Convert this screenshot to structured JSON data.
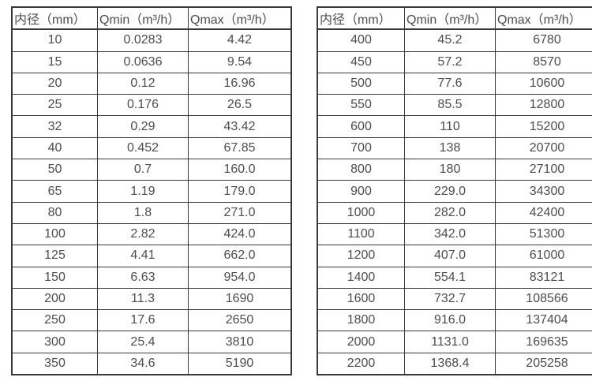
{
  "colors": {
    "border": "#3a3a3a",
    "text": "#4d4d4d",
    "background": "#ffffff"
  },
  "tables": [
    {
      "name": "small-diameters",
      "headers": [
        "内径（mm）",
        "Qmin（m³/h）",
        "Qmax（m³/h）"
      ],
      "rows": [
        [
          "10",
          "0.0283",
          "4.42"
        ],
        [
          "15",
          "0.0636",
          "9.54"
        ],
        [
          "20",
          "0.12",
          "16.96"
        ],
        [
          "25",
          "0.176",
          "26.5"
        ],
        [
          "32",
          "0.29",
          "43.42"
        ],
        [
          "40",
          "0.452",
          "67.85"
        ],
        [
          "50",
          "0.7",
          "160.0"
        ],
        [
          "65",
          "1.19",
          "179.0"
        ],
        [
          "80",
          "1.8",
          "271.0"
        ],
        [
          "100",
          "2.82",
          "424.0"
        ],
        [
          "125",
          "4.41",
          "662.0"
        ],
        [
          "150",
          "6.63",
          "954.0"
        ],
        [
          "200",
          "11.3",
          "1690"
        ],
        [
          "250",
          "17.6",
          "2650"
        ],
        [
          "300",
          "25.4",
          "3810"
        ],
        [
          "350",
          "34.6",
          "5190"
        ]
      ]
    },
    {
      "name": "large-diameters",
      "headers": [
        "内径（mm）",
        "Qmin（m³/h）",
        "Qmax（m³/h）"
      ],
      "rows": [
        [
          "400",
          "45.2",
          "6780"
        ],
        [
          "450",
          "57.2",
          "8570"
        ],
        [
          "500",
          "77.6",
          "10600"
        ],
        [
          "550",
          "85.5",
          "12800"
        ],
        [
          "600",
          "110",
          "15200"
        ],
        [
          "700",
          "138",
          "20700"
        ],
        [
          "800",
          "180",
          "27100"
        ],
        [
          "900",
          "229.0",
          "34300"
        ],
        [
          "1000",
          "282.0",
          "42400"
        ],
        [
          "1100",
          "342.0",
          "51300"
        ],
        [
          "1200",
          "407.0",
          "61000"
        ],
        [
          "1400",
          "554.1",
          "83121"
        ],
        [
          "1600",
          "732.7",
          "108566"
        ],
        [
          "1800",
          "916.0",
          "137404"
        ],
        [
          "2000",
          "1131.0",
          "169635"
        ],
        [
          "2200",
          "1368.4",
          "205258"
        ]
      ]
    }
  ]
}
